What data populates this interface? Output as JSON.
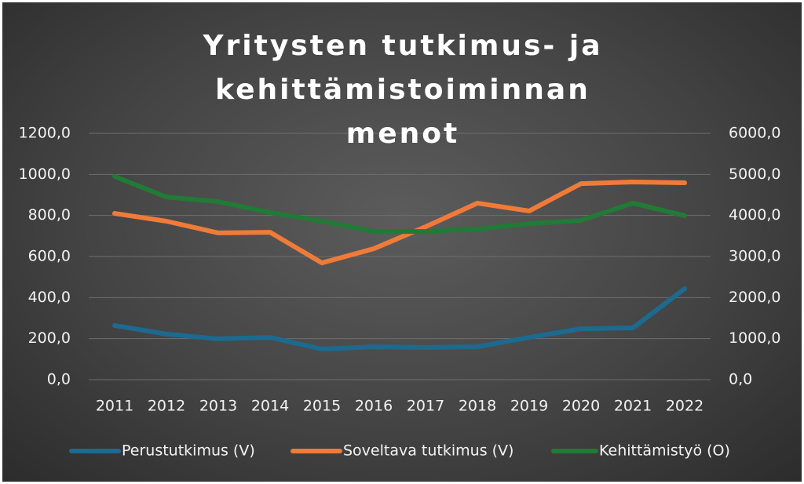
{
  "chart_data": {
    "type": "line",
    "title": "Yritysten tutkimus- ja kehittämistoiminnan menot",
    "categories": [
      "2011",
      "2012",
      "2013",
      "2014",
      "2015",
      "2016",
      "2017",
      "2018",
      "2019",
      "2020",
      "2021",
      "2022"
    ],
    "series": [
      {
        "name": "Perustutkimus (V)",
        "color": "#1c6a8f",
        "values": [
          264,
          222,
          199,
          206,
          149,
          160,
          157,
          160,
          206,
          248,
          252,
          443
        ]
      },
      {
        "name": "Soveltava tutkimus (V)",
        "color": "#f07b39",
        "values": [
          810,
          772,
          715,
          718,
          569,
          638,
          745,
          860,
          822,
          955,
          963,
          959
        ]
      },
      {
        "name": "Kehittämistyö (O)",
        "color": "#217a35",
        "axis": "y2",
        "values": [
          4950,
          4450,
          4337,
          4070,
          3860,
          3610,
          3610,
          3670,
          3800,
          3880,
          4300,
          3995
        ]
      }
    ],
    "ylim": [
      0,
      1200
    ],
    "yticks": [
      {
        "value": 0,
        "label": "0,0"
      },
      {
        "value": 200,
        "label": "200,0"
      },
      {
        "value": 400,
        "label": "400,0"
      },
      {
        "value": 600,
        "label": "600,0"
      },
      {
        "value": 800,
        "label": "800,0"
      },
      {
        "value": 1000,
        "label": "1000,0"
      },
      {
        "value": 1200,
        "label": "1200,0"
      }
    ],
    "y2lim": [
      0,
      6000
    ],
    "y2ticks": [
      {
        "value": 0,
        "label": "0,0"
      },
      {
        "value": 1000,
        "label": "1000,0"
      },
      {
        "value": 2000,
        "label": "2000,0"
      },
      {
        "value": 3000,
        "label": "3000,0"
      },
      {
        "value": 4000,
        "label": "4000,0"
      },
      {
        "value": 5000,
        "label": "5000,0"
      },
      {
        "value": 6000,
        "label": "6000,0"
      }
    ],
    "grid": true,
    "legend": "bottom"
  }
}
